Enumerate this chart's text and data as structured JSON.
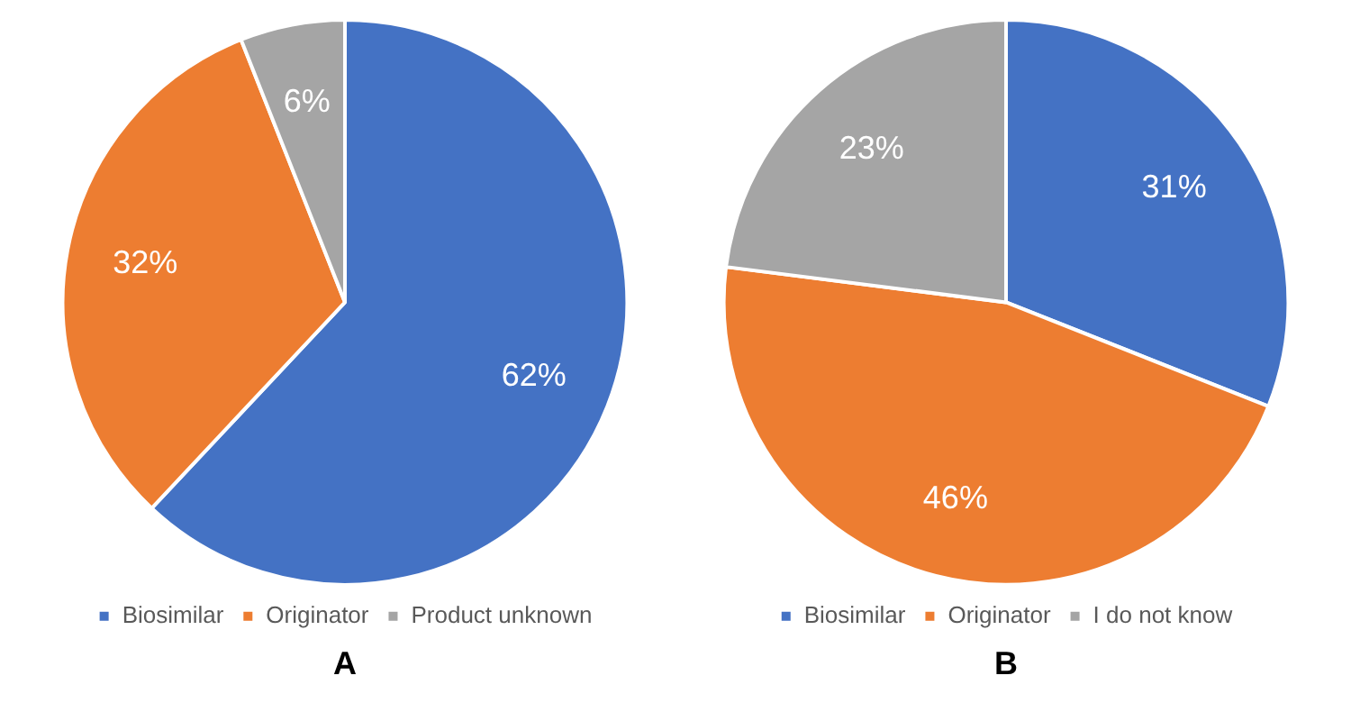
{
  "chart_data": [
    {
      "type": "pie",
      "title": "A",
      "categories": [
        "Biosimilar",
        "Originator",
        "Product unknown"
      ],
      "values": [
        62,
        32,
        6
      ],
      "colors": [
        "#4472c4",
        "#ed7d31",
        "#a5a5a5"
      ],
      "value_labels": [
        "62%",
        "32%",
        "6%"
      ],
      "legend": "bottom"
    },
    {
      "type": "pie",
      "title": "B",
      "categories": [
        "Biosimilar",
        "Originator",
        "I do not know"
      ],
      "values": [
        31,
        46,
        23
      ],
      "colors": [
        "#4472c4",
        "#ed7d31",
        "#a5a5a5"
      ],
      "value_labels": [
        "31%",
        "46%",
        "23%"
      ],
      "legend": "bottom"
    }
  ]
}
